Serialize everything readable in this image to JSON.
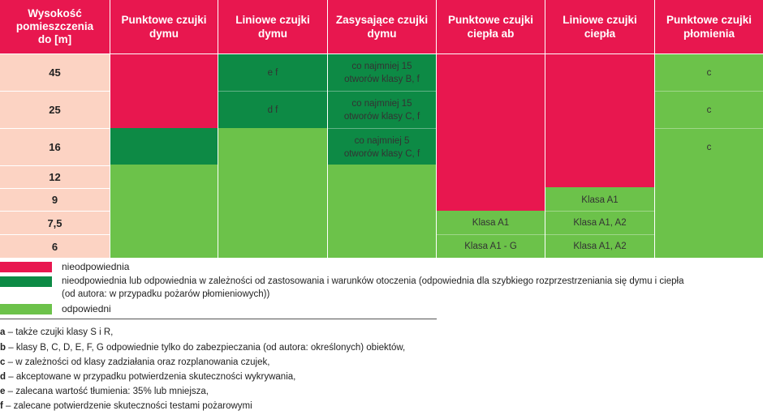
{
  "colors": {
    "red": "#e8174f",
    "dark_green": "#0d8a45",
    "light_green": "#6cc24a",
    "label_bg": "#fcd3c3",
    "header_bg": "#e8174f"
  },
  "table": {
    "corner_header": [
      "Wysokość",
      "pomieszczenia",
      "do [m]"
    ],
    "column_headers": [
      [
        "Punktowe czujki",
        "dymu"
      ],
      [
        "Liniowe czujki",
        "dymu"
      ],
      [
        "Zasysające czujki",
        "dymu"
      ],
      [
        "Punktowe czujki",
        "ciepła ab"
      ],
      [
        "Liniowe czujki",
        "ciepła"
      ],
      [
        "Punktowe czujki",
        "płomienia"
      ]
    ],
    "row_heights": [
      "45",
      "25",
      "16",
      "12",
      "9",
      "7,5",
      "6"
    ],
    "cells": {
      "col2_r0": "e f",
      "col2_r1": "d f",
      "col3_r0": [
        "co najmniej 15",
        "otworów klasy B, f"
      ],
      "col3_r1": [
        "co najmniej 15",
        "otworów klasy C, f"
      ],
      "col3_r2": [
        "co najmniej 5",
        "otworów klasy C, f"
      ],
      "col4_r5": "Klasa A1",
      "col4_r6": "Klasa A1 - G",
      "col5_r4": "Klasa A1",
      "col5_r5": "Klasa A1, A2",
      "col5_r6": "Klasa A1, A2",
      "col6_r0": "c",
      "col6_r1": "c",
      "col6_r2": "c"
    }
  },
  "legend": [
    {
      "color": "red",
      "text": [
        "nieodpowiednia"
      ]
    },
    {
      "color": "dark_green",
      "text": [
        "nieodpowiednia lub odpowiednia w zależności od zastosowania i warunków otoczenia (odpowiednia dla szybkiego rozprzestrzeniania się dymu i ciepła",
        "(od autora: w przypadku pożarów płomieniowych))"
      ]
    },
    {
      "color": "light_green",
      "text": [
        "odpowiedni"
      ]
    }
  ],
  "notes": [
    {
      "key": "a",
      "text": " – także czujki klasy S i R,"
    },
    {
      "key": "b",
      "text": " – klasy B, C, D, E, F, G odpowiednie tylko do zabezpieczania (od autora: określonych) obiektów,"
    },
    {
      "key": "c",
      "text": " – w zależności od klasy zadziałania oraz rozplanowania czujek,"
    },
    {
      "key": "d",
      "text": " – akceptowane w przypadku potwierdzenia skuteczności wykrywania,"
    },
    {
      "key": "e",
      "text": " – zalecana wartość tłumienia: 35% lub mniejsza,"
    },
    {
      "key": "f",
      "text": " – zalecane potwierdzenie skuteczności testami pożarowymi"
    }
  ]
}
